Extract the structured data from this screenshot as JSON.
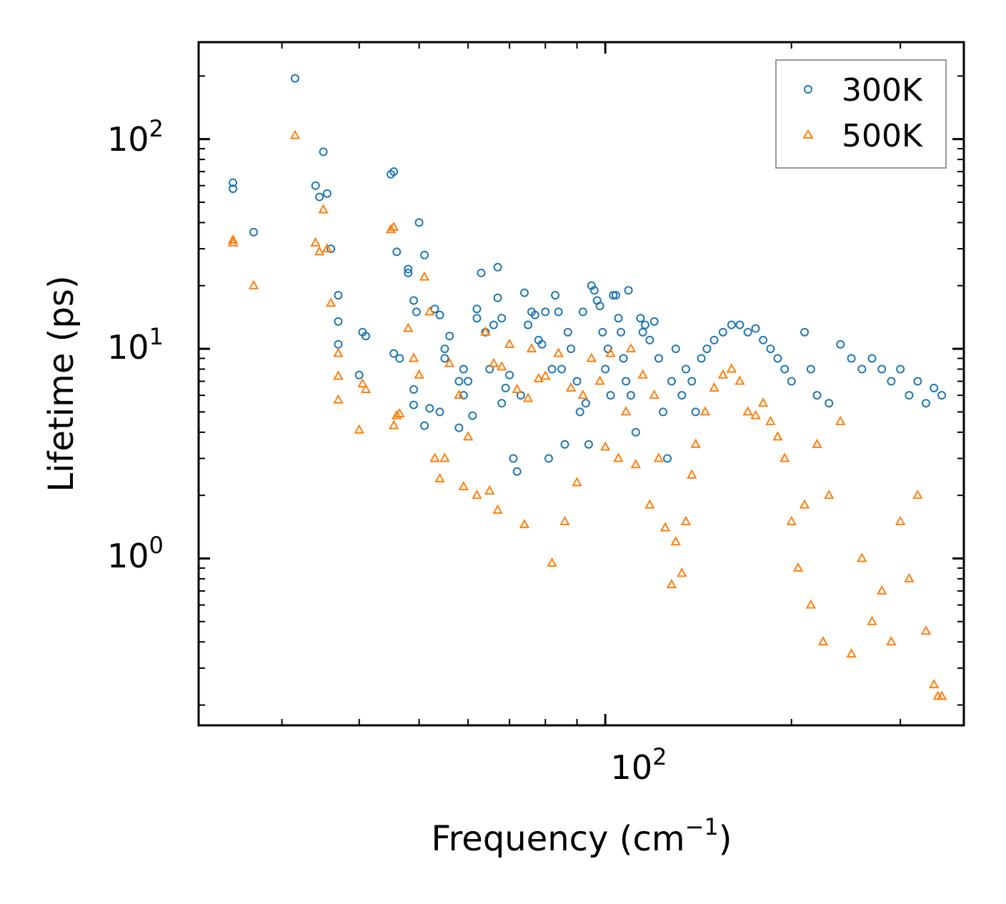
{
  "chart_data": {
    "type": "scatter",
    "title": "",
    "xlabel": "Frequency (cm",
    "xlabel_sup": "−1",
    "xlabel_close": ")",
    "ylabel": "Lifetime (ps)",
    "xscale": "log",
    "yscale": "log",
    "xlim": [
      22,
      380
    ],
    "ylim": [
      0.16,
      290
    ],
    "x_tick_labels": [
      {
        "base": "10",
        "exp": "2",
        "value": 100
      }
    ],
    "y_tick_labels": [
      {
        "base": "10",
        "exp": "0",
        "value": 1
      },
      {
        "base": "10",
        "exp": "1",
        "value": 10
      },
      {
        "base": "10",
        "exp": "2",
        "value": 100
      }
    ],
    "legend_position": "top-right",
    "series": [
      {
        "name": "300K",
        "marker": "circle",
        "color": "#1f77b4",
        "points": [
          [
            25,
            62
          ],
          [
            25,
            58
          ],
          [
            27,
            36
          ],
          [
            31.5,
            195
          ],
          [
            34,
            60
          ],
          [
            34.5,
            53
          ],
          [
            35,
            87
          ],
          [
            35.5,
            55
          ],
          [
            36,
            30
          ],
          [
            37,
            18
          ],
          [
            37,
            13.5
          ],
          [
            37,
            10.5
          ],
          [
            40.5,
            12
          ],
          [
            41,
            11.5
          ],
          [
            40,
            7.5
          ],
          [
            45,
            68
          ],
          [
            45.5,
            70
          ],
          [
            46,
            29
          ],
          [
            45.5,
            9.5
          ],
          [
            46.5,
            9
          ],
          [
            48,
            23
          ],
          [
            48,
            24
          ],
          [
            49,
            17
          ],
          [
            49.5,
            15
          ],
          [
            49,
            6.4
          ],
          [
            49,
            5.4
          ],
          [
            50,
            40
          ],
          [
            51,
            28
          ],
          [
            51,
            4.3
          ],
          [
            52,
            5.2
          ],
          [
            53,
            15.5
          ],
          [
            54,
            5
          ],
          [
            54,
            14.5
          ],
          [
            55,
            9
          ],
          [
            55,
            10
          ],
          [
            56,
            11.5
          ],
          [
            58,
            4.2
          ],
          [
            58,
            7
          ],
          [
            59,
            8
          ],
          [
            59,
            6
          ],
          [
            60,
            7
          ],
          [
            61,
            4.8
          ],
          [
            62,
            15.5
          ],
          [
            62,
            14
          ],
          [
            63,
            23
          ],
          [
            64,
            12
          ],
          [
            65,
            8
          ],
          [
            66,
            13
          ],
          [
            67,
            24.5
          ],
          [
            67,
            17.5
          ],
          [
            68,
            14
          ],
          [
            68,
            5.5
          ],
          [
            69,
            6.5
          ],
          [
            70,
            7.5
          ],
          [
            71,
            3
          ],
          [
            72,
            2.6
          ],
          [
            73,
            6
          ],
          [
            74,
            18.5
          ],
          [
            75,
            13
          ],
          [
            76,
            15
          ],
          [
            77,
            14.5
          ],
          [
            78,
            11
          ],
          [
            79,
            10.5
          ],
          [
            80,
            15
          ],
          [
            81,
            3
          ],
          [
            82,
            8
          ],
          [
            83,
            18
          ],
          [
            84,
            15
          ],
          [
            85,
            8
          ],
          [
            86,
            3.5
          ],
          [
            87,
            12
          ],
          [
            88,
            10
          ],
          [
            90,
            7
          ],
          [
            91,
            5
          ],
          [
            92,
            15
          ],
          [
            93,
            5.5
          ],
          [
            94,
            3.5
          ],
          [
            95,
            20
          ],
          [
            96,
            19
          ],
          [
            97,
            17
          ],
          [
            98,
            16
          ],
          [
            99,
            12
          ],
          [
            100,
            8
          ],
          [
            101,
            10
          ],
          [
            102,
            6
          ],
          [
            103,
            18
          ],
          [
            104,
            18
          ],
          [
            105,
            14
          ],
          [
            106,
            12
          ],
          [
            107,
            9
          ],
          [
            108,
            7
          ],
          [
            109,
            19
          ],
          [
            110,
            6
          ],
          [
            112,
            4
          ],
          [
            114,
            14
          ],
          [
            115,
            12
          ],
          [
            116,
            13
          ],
          [
            118,
            11
          ],
          [
            120,
            13.5
          ],
          [
            122,
            9
          ],
          [
            124,
            5
          ],
          [
            126,
            3
          ],
          [
            128,
            7
          ],
          [
            130,
            10
          ],
          [
            133,
            6
          ],
          [
            135,
            8
          ],
          [
            138,
            7
          ],
          [
            140,
            5
          ],
          [
            143,
            9
          ],
          [
            146,
            10
          ],
          [
            150,
            11
          ],
          [
            155,
            12
          ],
          [
            160,
            13
          ],
          [
            165,
            13
          ],
          [
            170,
            12
          ],
          [
            175,
            12.5
          ],
          [
            180,
            11
          ],
          [
            185,
            10
          ],
          [
            190,
            9
          ],
          [
            195,
            8
          ],
          [
            200,
            7
          ],
          [
            210,
            12
          ],
          [
            215,
            8
          ],
          [
            220,
            6
          ],
          [
            230,
            5.5
          ],
          [
            240,
            10.5
          ],
          [
            250,
            9
          ],
          [
            260,
            8
          ],
          [
            270,
            9
          ],
          [
            280,
            8
          ],
          [
            290,
            7
          ],
          [
            300,
            8
          ],
          [
            310,
            6
          ],
          [
            320,
            7
          ],
          [
            330,
            5.5
          ],
          [
            340,
            6.5
          ],
          [
            350,
            6
          ]
        ]
      },
      {
        "name": "500K",
        "marker": "triangle",
        "color": "#ff7f0e",
        "points": [
          [
            25,
            33
          ],
          [
            25,
            32
          ],
          [
            27,
            20
          ],
          [
            31.5,
            104
          ],
          [
            34,
            32
          ],
          [
            34.5,
            29
          ],
          [
            35,
            46
          ],
          [
            35.5,
            30
          ],
          [
            36,
            16.5
          ],
          [
            37,
            9.5
          ],
          [
            37,
            7.4
          ],
          [
            37,
            5.7
          ],
          [
            40,
            4.1
          ],
          [
            40.5,
            6.8
          ],
          [
            41,
            6.4
          ],
          [
            45,
            37
          ],
          [
            45.5,
            38
          ],
          [
            46,
            4.8
          ],
          [
            45.5,
            4.3
          ],
          [
            46.5,
            4.9
          ],
          [
            48,
            12.5
          ],
          [
            49,
            9
          ],
          [
            50,
            7.5
          ],
          [
            51,
            22
          ],
          [
            52,
            15
          ],
          [
            53,
            3
          ],
          [
            54,
            2.4
          ],
          [
            55,
            3
          ],
          [
            56,
            8.5
          ],
          [
            58,
            6
          ],
          [
            59,
            2.2
          ],
          [
            60,
            3.8
          ],
          [
            62,
            2
          ],
          [
            64,
            12
          ],
          [
            65,
            2.1
          ],
          [
            66,
            8.5
          ],
          [
            67,
            1.7
          ],
          [
            68,
            8.2
          ],
          [
            70,
            10.5
          ],
          [
            72,
            6.4
          ],
          [
            74,
            1.45
          ],
          [
            75,
            5.8
          ],
          [
            76,
            10
          ],
          [
            78,
            7.2
          ],
          [
            80,
            7.4
          ],
          [
            82,
            0.95
          ],
          [
            84,
            9.5
          ],
          [
            86,
            1.5
          ],
          [
            88,
            6.5
          ],
          [
            90,
            2.3
          ],
          [
            92,
            6
          ],
          [
            95,
            9
          ],
          [
            98,
            7
          ],
          [
            100,
            3.4
          ],
          [
            102,
            9.5
          ],
          [
            105,
            3
          ],
          [
            108,
            5
          ],
          [
            110,
            10
          ],
          [
            112,
            2.8
          ],
          [
            115,
            7.5
          ],
          [
            118,
            1.8
          ],
          [
            120,
            6
          ],
          [
            122,
            3
          ],
          [
            125,
            1.4
          ],
          [
            128,
            0.75
          ],
          [
            130,
            1.2
          ],
          [
            133,
            0.85
          ],
          [
            135,
            1.5
          ],
          [
            138,
            2.5
          ],
          [
            140,
            3.5
          ],
          [
            145,
            5
          ],
          [
            150,
            6.5
          ],
          [
            155,
            7.5
          ],
          [
            160,
            8
          ],
          [
            165,
            7
          ],
          [
            170,
            5
          ],
          [
            175,
            4.8
          ],
          [
            180,
            5.5
          ],
          [
            185,
            4.5
          ],
          [
            190,
            3.8
          ],
          [
            195,
            3
          ],
          [
            200,
            1.5
          ],
          [
            205,
            0.9
          ],
          [
            210,
            1.8
          ],
          [
            215,
            0.6
          ],
          [
            220,
            3.5
          ],
          [
            225,
            0.4
          ],
          [
            230,
            2
          ],
          [
            240,
            4.5
          ],
          [
            250,
            0.35
          ],
          [
            260,
            1
          ],
          [
            270,
            0.5
          ],
          [
            280,
            0.7
          ],
          [
            290,
            0.4
          ],
          [
            300,
            1.5
          ],
          [
            310,
            0.8
          ],
          [
            320,
            2
          ],
          [
            330,
            0.45
          ],
          [
            340,
            0.25
          ],
          [
            345,
            0.22
          ],
          [
            350,
            0.22
          ]
        ]
      }
    ]
  }
}
